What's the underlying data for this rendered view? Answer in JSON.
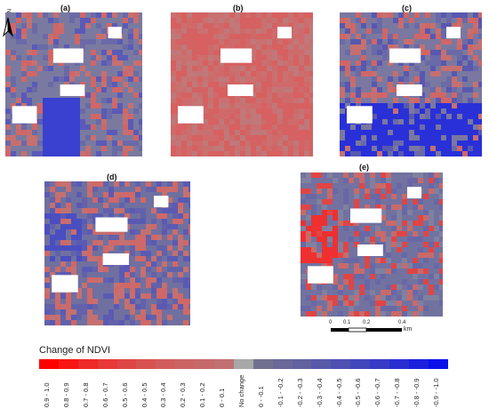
{
  "panels": [
    {
      "id": "a",
      "label": "(a)"
    },
    {
      "id": "b",
      "label": "(b)"
    },
    {
      "id": "c",
      "label": "(c)"
    },
    {
      "id": "d",
      "label": "(d)"
    },
    {
      "id": "e",
      "label": "(e)"
    }
  ],
  "north_arrow": {
    "letter": "N"
  },
  "scale_bar": {
    "labels": [
      "0",
      "0.1",
      "0.2",
      "0.4"
    ],
    "unit": "km"
  },
  "legend": {
    "title": "Change of NDVI",
    "classes": [
      {
        "label": "0.9 - 1.0",
        "color": "#ff0000"
      },
      {
        "label": "0.8 - 0.9",
        "color": "#f71515"
      },
      {
        "label": "0.7 - 0.8",
        "color": "#ef2828"
      },
      {
        "label": "0.6 - 0.7",
        "color": "#e83838"
      },
      {
        "label": "0.5 - 0.6",
        "color": "#e04545"
      },
      {
        "label": "0.4 - 0.5",
        "color": "#d95252"
      },
      {
        "label": "0.3 - 0.4",
        "color": "#d25c5c"
      },
      {
        "label": "0.2 - 0.3",
        "color": "#cc6464"
      },
      {
        "label": "0.1 - 0.2",
        "color": "#c56a6a"
      },
      {
        "label": "0 - 0.1",
        "color": "#c07070"
      },
      {
        "label": "No change",
        "color": "#a8a8a8"
      },
      {
        "label": "0 - -0.1",
        "color": "#727090"
      },
      {
        "label": "-0.1 - -0.2",
        "color": "#6a6898"
      },
      {
        "label": "-0.2 - -0.3",
        "color": "#6262a0"
      },
      {
        "label": "-0.3 - -0.4",
        "color": "#585aa8"
      },
      {
        "label": "-0.4 - -0.5",
        "color": "#4e50b2"
      },
      {
        "label": "-0.5 - -0.6",
        "color": "#4246bc"
      },
      {
        "label": "-0.6 - -0.7",
        "color": "#363ac6"
      },
      {
        "label": "-0.7 - -0.8",
        "color": "#282ed0"
      },
      {
        "label": "-0.8 - -0.9",
        "color": "#1a20dc"
      },
      {
        "label": "-0.9 - -1.0",
        "color": "#0a10ea"
      }
    ]
  }
}
